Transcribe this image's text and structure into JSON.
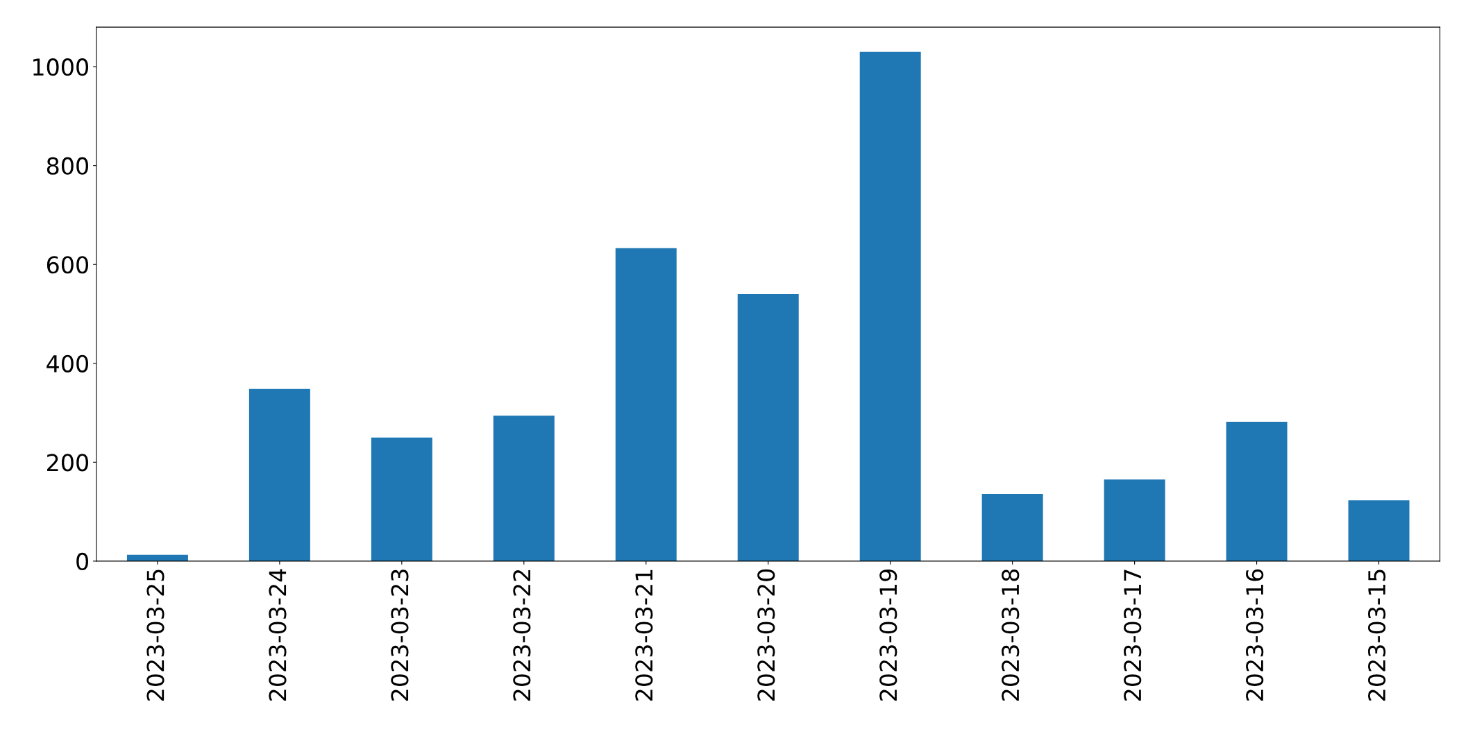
{
  "chart_data": {
    "type": "bar",
    "categories": [
      "2023-03-25",
      "2023-03-24",
      "2023-03-23",
      "2023-03-22",
      "2023-03-21",
      "2023-03-20",
      "2023-03-19",
      "2023-03-18",
      "2023-03-17",
      "2023-03-16",
      "2023-03-15"
    ],
    "values": [
      13,
      348,
      250,
      294,
      633,
      540,
      1030,
      136,
      165,
      282,
      123
    ],
    "color": "#1f77b4",
    "ylim": [
      0,
      1080
    ],
    "yticks": [
      0,
      200,
      400,
      600,
      800,
      1000
    ],
    "grid": false,
    "legend": false
  }
}
